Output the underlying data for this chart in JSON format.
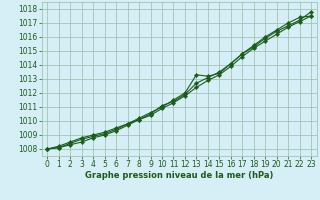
{
  "xlabel": "Graphe pression niveau de la mer (hPa)",
  "xlim": [
    -0.5,
    23.5
  ],
  "ylim": [
    1007.5,
    1018.5
  ],
  "yticks": [
    1008,
    1009,
    1010,
    1011,
    1012,
    1013,
    1014,
    1015,
    1016,
    1017,
    1018
  ],
  "xticks": [
    0,
    1,
    2,
    3,
    4,
    5,
    6,
    7,
    8,
    9,
    10,
    11,
    12,
    13,
    14,
    15,
    16,
    17,
    18,
    19,
    20,
    21,
    22,
    23
  ],
  "background_color": "#d6eef5",
  "grid_color": "#99bbaa",
  "line_color": "#1a5c1a",
  "line1": [
    1008.0,
    1008.2,
    1008.5,
    1008.8,
    1009.0,
    1009.2,
    1009.5,
    1009.8,
    1010.2,
    1010.6,
    1011.0,
    1011.5,
    1012.0,
    1013.3,
    1013.2,
    1013.4,
    1014.1,
    1014.8,
    1015.4,
    1016.0,
    1016.5,
    1017.0,
    1017.4,
    1017.5
  ],
  "line2": [
    1008.0,
    1008.1,
    1008.4,
    1008.7,
    1008.9,
    1009.1,
    1009.4,
    1009.8,
    1010.1,
    1010.5,
    1011.1,
    1011.4,
    1011.9,
    1012.7,
    1013.1,
    1013.5,
    1014.1,
    1014.8,
    1015.3,
    1015.9,
    1016.4,
    1016.8,
    1017.2,
    1017.8
  ],
  "line3": [
    1008.0,
    1008.1,
    1008.3,
    1008.5,
    1008.8,
    1009.0,
    1009.3,
    1009.7,
    1010.1,
    1010.4,
    1010.9,
    1011.3,
    1011.8,
    1012.4,
    1012.9,
    1013.3,
    1013.9,
    1014.6,
    1015.2,
    1015.7,
    1016.2,
    1016.7,
    1017.1,
    1017.5
  ],
  "tick_fontsize": 5.5,
  "xlabel_fontsize": 6.0
}
